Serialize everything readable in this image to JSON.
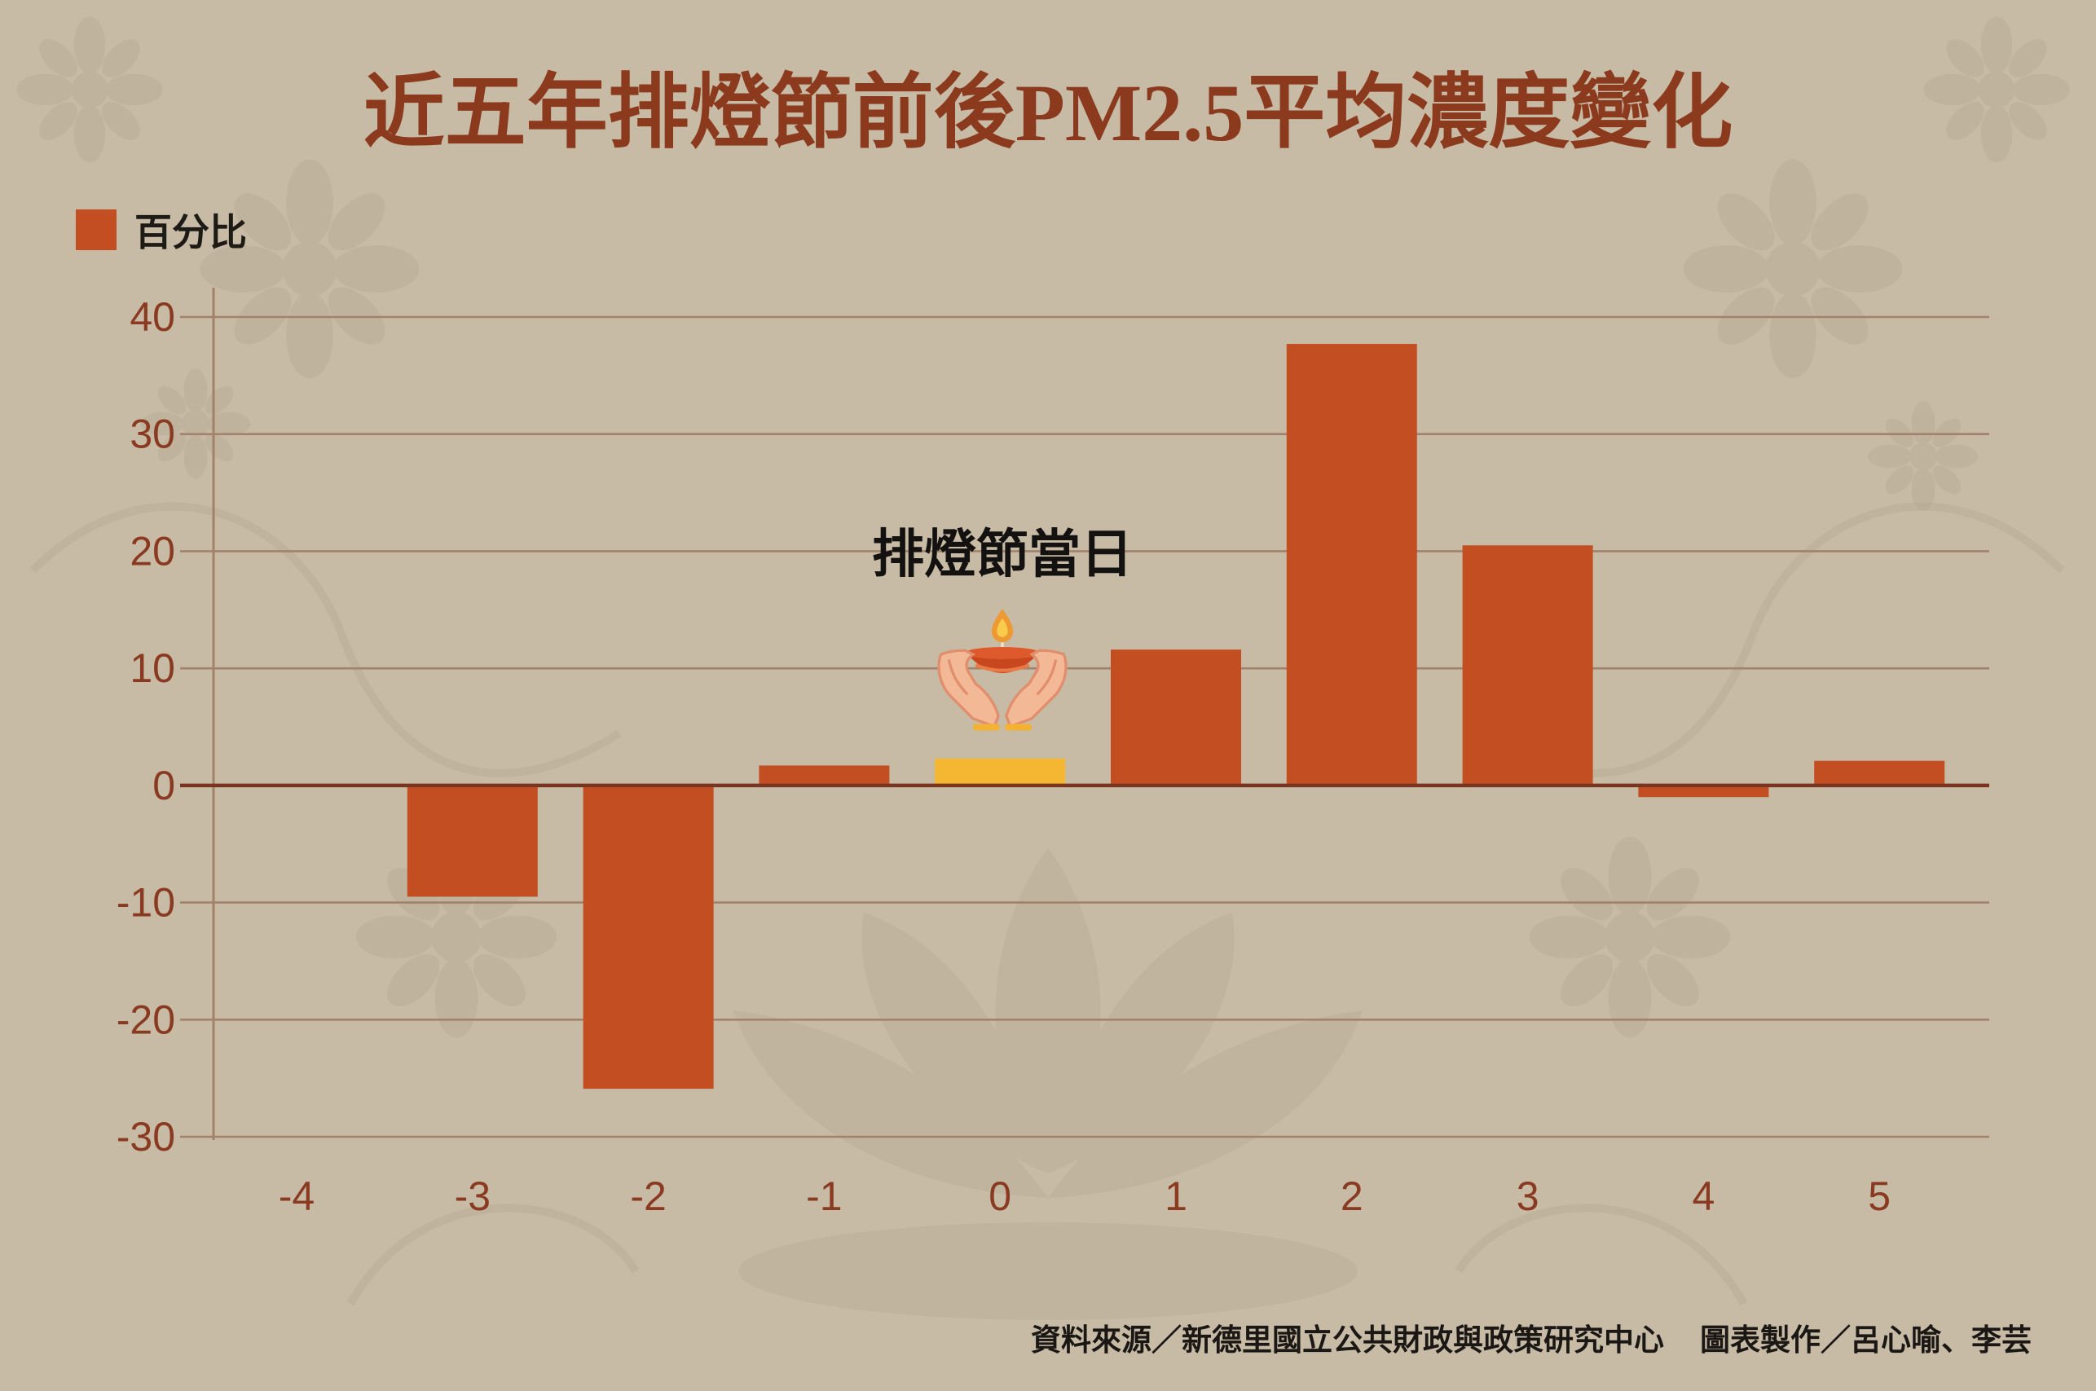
{
  "chart_data": {
    "type": "bar",
    "title": "近五年排燈節前後PM2.5平均濃度變化",
    "xlabel": "",
    "ylabel": "",
    "categories": [
      "-4",
      "-3",
      "-2",
      "-1",
      "0",
      "1",
      "2",
      "3",
      "4",
      "5"
    ],
    "series": [
      {
        "name": "百分比",
        "values": [
          null,
          -9.5,
          -25.9,
          1.7,
          2.3,
          11.6,
          37.7,
          20.5,
          -1.0,
          2.1
        ]
      }
    ],
    "ylim": [
      -30,
      40
    ],
    "yticks": [
      40,
      30,
      20,
      10,
      0,
      -10,
      -20,
      -30
    ],
    "grid": true,
    "legend_position": "top-left",
    "highlight": {
      "category": "0",
      "color": "#F5B731"
    },
    "annotations": [
      {
        "text": "排燈節當日",
        "category": "0",
        "icon": "diya-hands-icon"
      }
    ]
  },
  "footer": {
    "source": "資料來源／新德里國立公共財政與政策研究中心",
    "credit": "圖表製作／呂心喻、李芸"
  },
  "colors": {
    "background": "#C7BBA6",
    "bar": "#C24E22",
    "highlight_bar": "#F5B731",
    "title": "#8C3A1E",
    "tick_label": "#8A3A20",
    "gridline": "#A2826A",
    "zero_line": "#7A3520"
  }
}
